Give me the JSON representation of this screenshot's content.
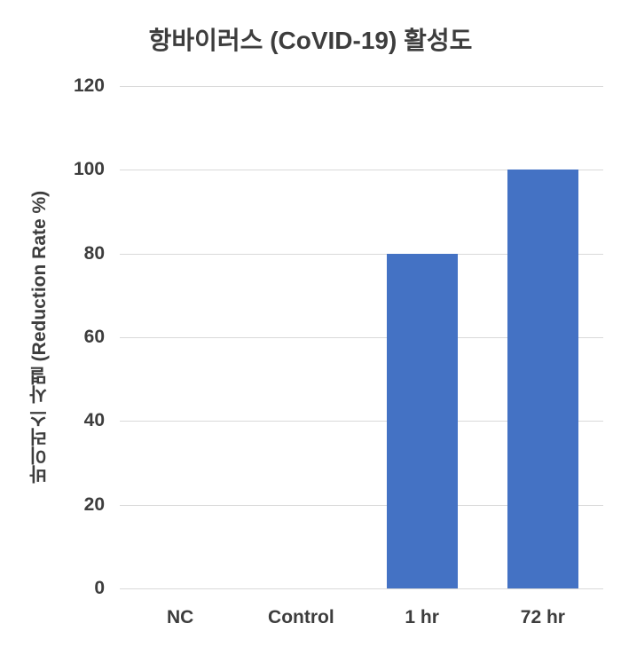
{
  "chart_data": {
    "type": "bar",
    "title": "항바이러스 (CoVID-19) 활성도",
    "ylabel": "바이러스 사멸 (Reduction Rate %)",
    "xlabel": "",
    "categories": [
      "NC",
      "Control",
      "1 hr",
      "72 hr"
    ],
    "values": [
      0,
      0,
      80,
      100
    ],
    "ylim": [
      0,
      120
    ],
    "yticks": [
      0,
      20,
      40,
      60,
      80,
      100,
      120
    ],
    "grid": true,
    "legend": false,
    "bar_color": "#4472C4",
    "text_color": "#3d3d3d",
    "gridline_color": "#d9d9d9",
    "background_color": "#ffffff"
  }
}
